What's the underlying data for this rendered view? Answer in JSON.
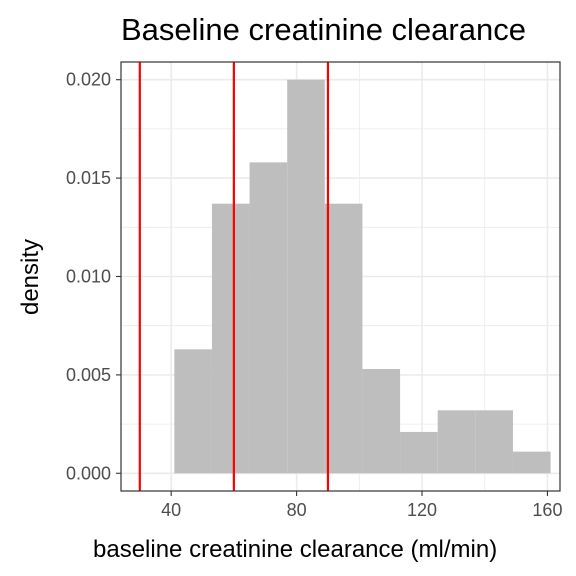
{
  "chart_data": {
    "type": "histogram",
    "title": "Baseline creatinine clearance",
    "xlabel": "baseline creatinine clearance (ml/min)",
    "ylabel": "density",
    "xlim": [
      24,
      164
    ],
    "ylim": [
      -0.0009,
      0.0209
    ],
    "x_ticks": [
      40,
      80,
      120,
      160
    ],
    "x_tick_labels": [
      "40",
      "80",
      "120",
      "160"
    ],
    "y_ticks": [
      0.0,
      0.005,
      0.01,
      0.015,
      0.02
    ],
    "y_tick_labels": [
      "0.000",
      "0.005",
      "0.010",
      "0.015",
      "0.020"
    ],
    "bins": [
      {
        "x0": 41,
        "x1": 53,
        "density": 0.0063
      },
      {
        "x0": 53,
        "x1": 65,
        "density": 0.0137
      },
      {
        "x0": 65,
        "x1": 77,
        "density": 0.0158
      },
      {
        "x0": 77,
        "x1": 89,
        "density": 0.02
      },
      {
        "x0": 89,
        "x1": 101,
        "density": 0.0137
      },
      {
        "x0": 101,
        "x1": 113,
        "density": 0.0053
      },
      {
        "x0": 113,
        "x1": 125,
        "density": 0.0021
      },
      {
        "x0": 125,
        "x1": 137,
        "density": 0.0032
      },
      {
        "x0": 137,
        "x1": 149,
        "density": 0.0032
      },
      {
        "x0": 149,
        "x1": 161,
        "density": 0.0011
      }
    ],
    "vlines": [
      30,
      60,
      90
    ],
    "grid": true,
    "colors": {
      "bars": "#bebebe",
      "vlines": "#ff0000",
      "grid": "#ebebeb",
      "panel_border": "#333333"
    }
  }
}
